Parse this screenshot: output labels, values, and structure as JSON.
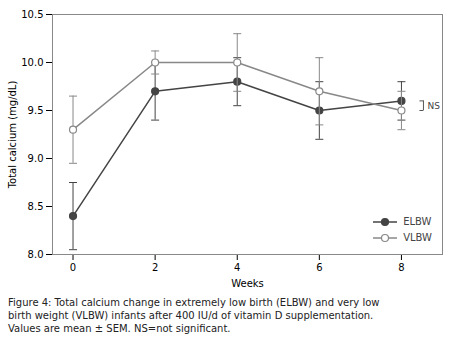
{
  "chart_data": {
    "type": "line",
    "x": [
      0,
      2,
      4,
      6,
      8
    ],
    "series": [
      {
        "name": "ELBW",
        "color": "#444444",
        "marker": "circle",
        "values": [
          8.4,
          9.7,
          9.8,
          9.5,
          9.6
        ],
        "errors": [
          0.35,
          0.3,
          0.25,
          0.3,
          0.2
        ]
      },
      {
        "name": "VLBW",
        "color": "#888888",
        "marker": "circle-open",
        "values": [
          9.3,
          10.0,
          10.0,
          9.7,
          9.5
        ],
        "errors": [
          0.35,
          0.12,
          0.3,
          0.35,
          0.2
        ]
      }
    ],
    "xlim": [
      -0.5,
      9
    ],
    "xticks": [
      0,
      2,
      4,
      6,
      8
    ],
    "ylim": [
      8.0,
      10.5
    ],
    "yticks": [
      {
        "value": 8.0,
        "label": "8.0"
      },
      8.5,
      {
        "value": 9.0,
        "label": "9.0"
      },
      9.5,
      {
        "value": 10.0,
        "label": "10.0"
      },
      10.5
    ],
    "xlabel": "Weeks",
    "ylabel": "Total calcium (mg/dL)",
    "grid": false,
    "legend": "lower right",
    "annotations": [
      {
        "text": "NS",
        "x": 8,
        "y": [
          9.5,
          9.6
        ]
      }
    ],
    "caption": "Figure 4: Total calcium change in extremely low birth (ELBW) and very low\nbirth weight (VLBW) infants after 400 IU/d of vitamin D supplementation.\nValues are mean ± SEM. NS=not significant."
  }
}
